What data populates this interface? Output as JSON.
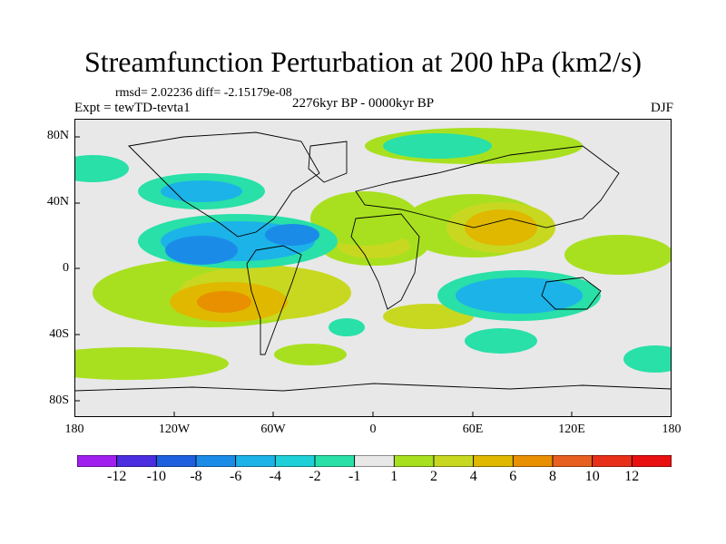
{
  "title": "Streamfunction Perturbation at 200 hPa (km2/s)",
  "stats": "rmsd= 2.02236 diff= -2.15179e-08",
  "experiment": "Expt = tewTD-tevta1",
  "period": "2276kyr BP - 0000kyr BP",
  "season": "DJF",
  "y_axis_labels": [
    "80N",
    "40N",
    "0",
    "40S",
    "80S"
  ],
  "x_axis_labels": [
    "180",
    "120W",
    "60W",
    "0",
    "60E",
    "120E",
    "180"
  ],
  "colorbar": {
    "labels": [
      "-12",
      "-10",
      "-8",
      "-6",
      "-4",
      "-2",
      "-1",
      "1",
      "2",
      "4",
      "6",
      "8",
      "10",
      "12"
    ],
    "colors": [
      "#a020f0",
      "#4a2ee0",
      "#1e5fe0",
      "#1a8ce8",
      "#1cb3e8",
      "#20d0d8",
      "#28e0a8",
      "#e8e8e8",
      "#a8e020",
      "#c8d820",
      "#e0b800",
      "#e89000",
      "#e86020",
      "#e83018",
      "#e81010"
    ]
  },
  "legend_patches": [
    {
      "name": "north-atlantic-green",
      "color": "#a8e020"
    },
    {
      "name": "arctic-cyan",
      "color": "#28e0a8"
    },
    {
      "name": "north-america-cyan",
      "color": "#1cb3e8"
    },
    {
      "name": "east-pacific-blue",
      "color": "#1a8ce8"
    },
    {
      "name": "south-america-orange",
      "color": "#e0b800"
    },
    {
      "name": "asia-orange",
      "color": "#e0b800"
    },
    {
      "name": "south-pacific-green",
      "color": "#c8d820"
    }
  ],
  "chart_data": {
    "type": "map",
    "projection": "cylindrical equidistant",
    "field": "streamfunction perturbation",
    "level_hpa": 200,
    "units": "km2/s",
    "lon_range": [
      -180,
      180
    ],
    "lat_range": [
      -90,
      90
    ],
    "contour_levels": [
      -12,
      -10,
      -8,
      -6,
      -4,
      -2,
      -1,
      1,
      2,
      4,
      6,
      8,
      10,
      12
    ],
    "features": [
      {
        "region": "South America / subtropical South Pacific",
        "sign": "positive",
        "peak_approx": 8
      },
      {
        "region": "South / East Asia",
        "sign": "positive",
        "peak_approx": 6
      },
      {
        "region": "Eastern Pacific / Central America",
        "sign": "negative",
        "peak_approx": -6
      },
      {
        "region": "North America",
        "sign": "negative",
        "peak_approx": -4
      },
      {
        "region": "Indian Ocean / Southern Hemisphere",
        "sign": "negative",
        "peak_approx": -4
      },
      {
        "region": "North Atlantic / Europe",
        "sign": "positive",
        "peak_approx": 2
      }
    ]
  }
}
